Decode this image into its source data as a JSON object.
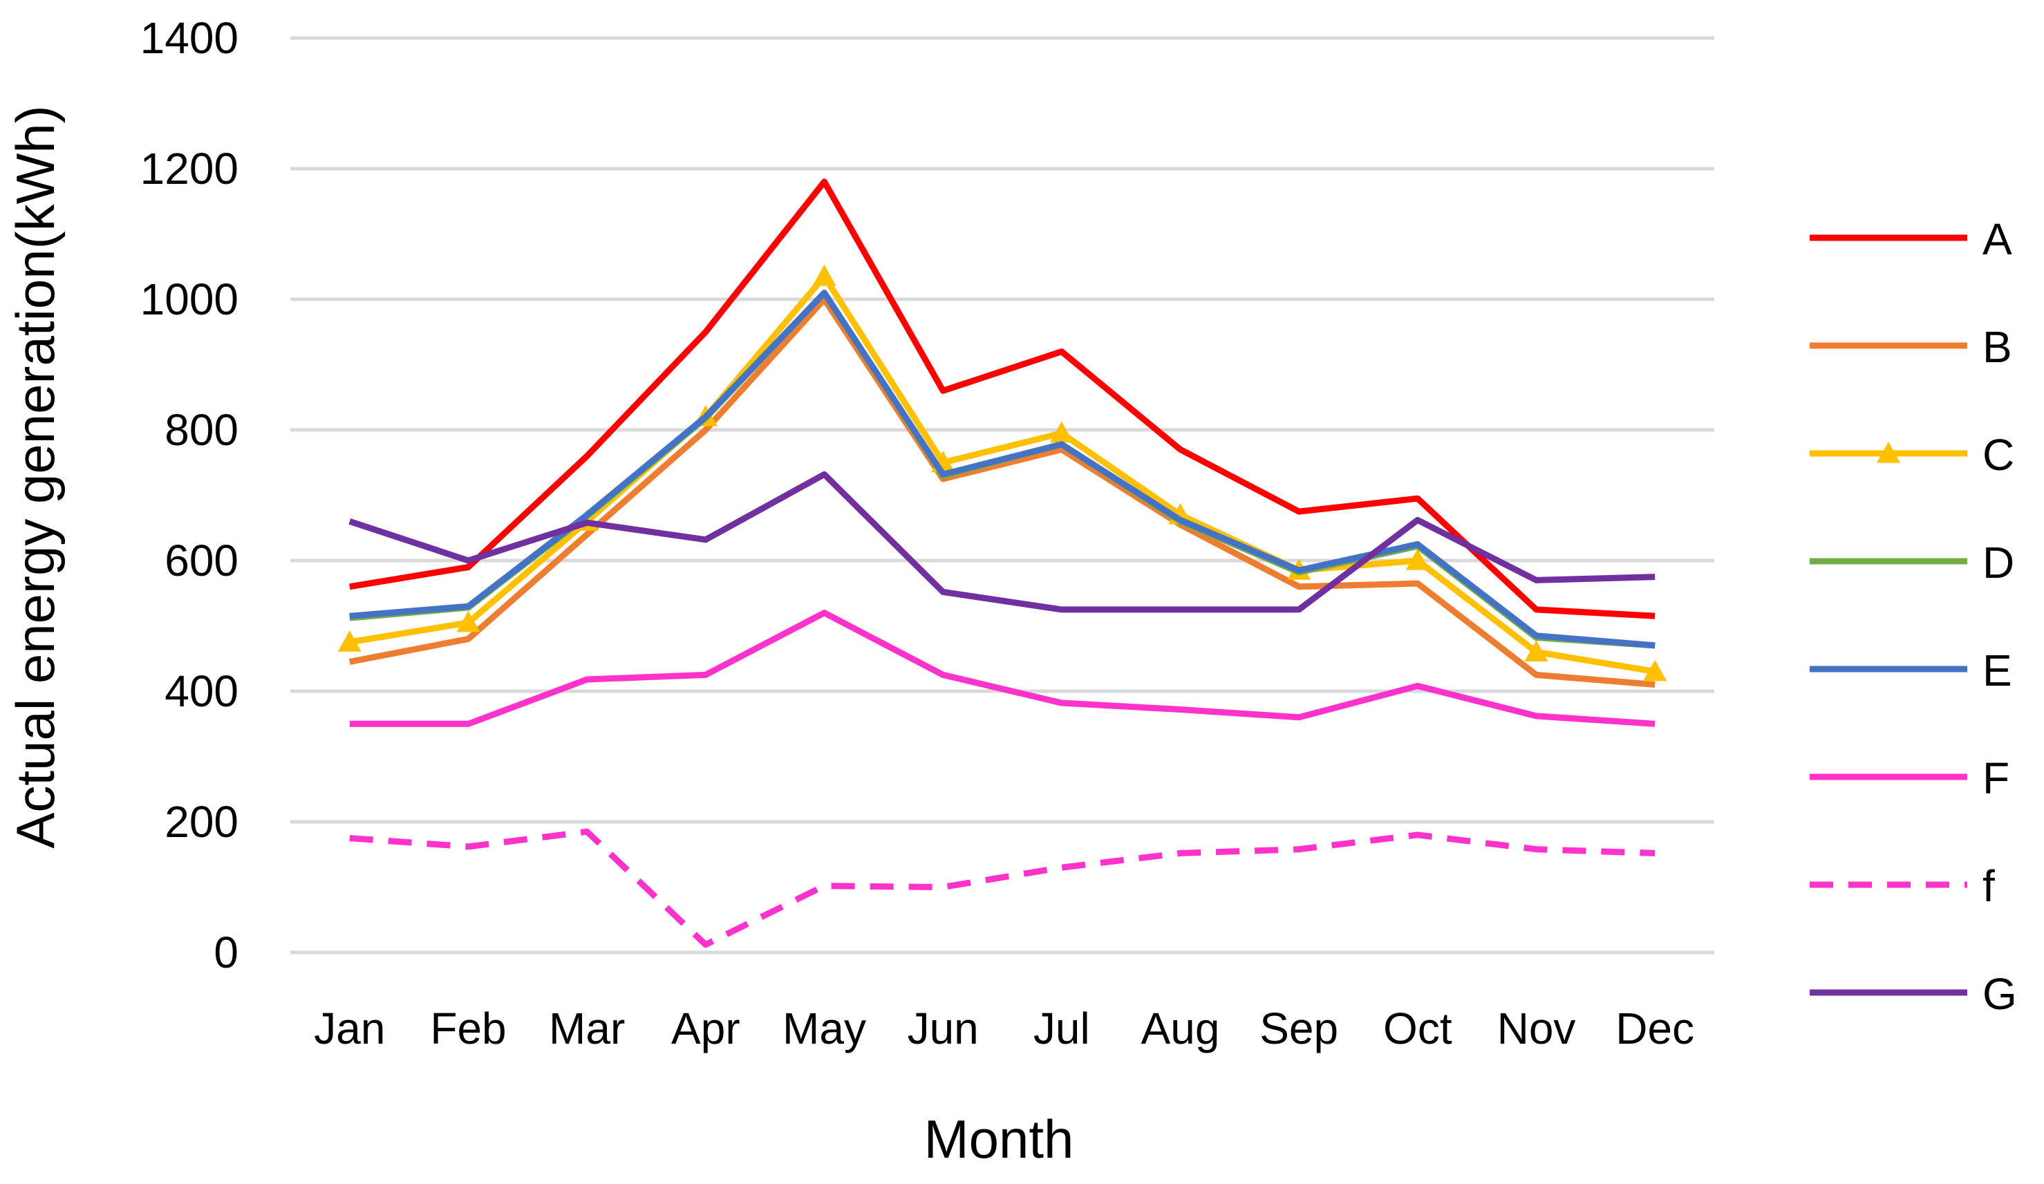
{
  "chart_data": {
    "type": "line",
    "title": "",
    "xlabel": "Month",
    "ylabel": "Actual energy generation(kWh)",
    "ylim": [
      0,
      1400
    ],
    "yticks": [
      0,
      200,
      400,
      600,
      800,
      1000,
      1200,
      1400
    ],
    "ytick_labels": [
      "0",
      "200",
      "400",
      "600",
      "800",
      "1000",
      "1200",
      "1400"
    ],
    "grid": true,
    "legend_position": "right",
    "categories": [
      "Jan",
      "Feb",
      "Mar",
      "Apr",
      "May",
      "Jun",
      "Jul",
      "Aug",
      "Sep",
      "Oct",
      "Nov",
      "Dec"
    ],
    "series": [
      {
        "name": "A",
        "color": "#ff0000",
        "dashed": false,
        "marker": "none",
        "values": [
          560,
          590,
          760,
          950,
          1180,
          860,
          920,
          770,
          675,
          695,
          525,
          515
        ]
      },
      {
        "name": "B",
        "color": "#ed7d31",
        "dashed": false,
        "marker": "none",
        "values": [
          445,
          480,
          640,
          800,
          1000,
          725,
          770,
          655,
          560,
          565,
          425,
          410
        ]
      },
      {
        "name": "C",
        "color": "#ffc000",
        "dashed": false,
        "marker": "triangle",
        "values": [
          475,
          505,
          660,
          820,
          1035,
          750,
          795,
          670,
          585,
          600,
          460,
          430
        ]
      },
      {
        "name": "D",
        "color": "#70ad47",
        "dashed": false,
        "marker": "none",
        "values": [
          512,
          528,
          668,
          818,
          1010,
          730,
          778,
          660,
          582,
          622,
          482,
          470
        ]
      },
      {
        "name": "E",
        "color": "#4472c4",
        "dashed": false,
        "marker": "none",
        "values": [
          515,
          530,
          670,
          820,
          1010,
          732,
          778,
          662,
          585,
          625,
          485,
          470
        ]
      },
      {
        "name": "F",
        "color": "#ff33cc",
        "dashed": false,
        "marker": "none",
        "values": [
          350,
          350,
          418,
          425,
          520,
          425,
          382,
          372,
          360,
          408,
          362,
          350
        ]
      },
      {
        "name": "f",
        "color": "#ff33cc",
        "dashed": true,
        "marker": "none",
        "values": [
          175,
          162,
          185,
          12,
          102,
          100,
          130,
          152,
          158,
          180,
          158,
          152
        ]
      },
      {
        "name": "G",
        "color": "#7030a0",
        "dashed": false,
        "marker": "none",
        "values": [
          660,
          600,
          658,
          632,
          732,
          552,
          525,
          525,
          525,
          662,
          570,
          575
        ]
      }
    ]
  }
}
